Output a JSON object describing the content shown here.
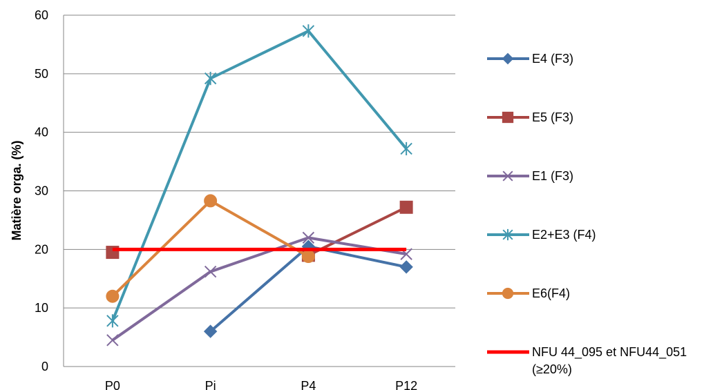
{
  "chart_data": {
    "type": "line",
    "categories": [
      "P0",
      "Pi",
      "P4",
      "P12"
    ],
    "ylabel": "Matière orga. (%)",
    "ylim": [
      0,
      60
    ],
    "yticks": [
      0,
      10,
      20,
      30,
      40,
      50,
      60
    ],
    "grid": "horizontal",
    "legend_position": "right",
    "series": [
      {
        "name": "E4 (F3)",
        "values": [
          null,
          6.0,
          20.5,
          17.0
        ],
        "color": "#4572A7",
        "marker": "diamond"
      },
      {
        "name": "E5 (F3)",
        "values": [
          19.5,
          null,
          19.0,
          27.2
        ],
        "color": "#AA4643",
        "marker": "square"
      },
      {
        "name": "E1 (F3)",
        "values": [
          4.5,
          16.2,
          22.0,
          19.2
        ],
        "color": "#80699B",
        "marker": "x"
      },
      {
        "name": "E2+E3 (F4)",
        "values": [
          7.8,
          49.2,
          57.3,
          37.2
        ],
        "color": "#4198AF",
        "marker": "star"
      },
      {
        "name": "E6(F4)",
        "values": [
          12.0,
          28.3,
          18.8,
          null
        ],
        "color": "#DB843D",
        "marker": "circle"
      },
      {
        "name": "NFU 44_095 et NFU44_051",
        "name_line2": "(≥20%)",
        "values": [
          20,
          20,
          20,
          20
        ],
        "color": "#FF0000",
        "marker": "none"
      }
    ]
  }
}
